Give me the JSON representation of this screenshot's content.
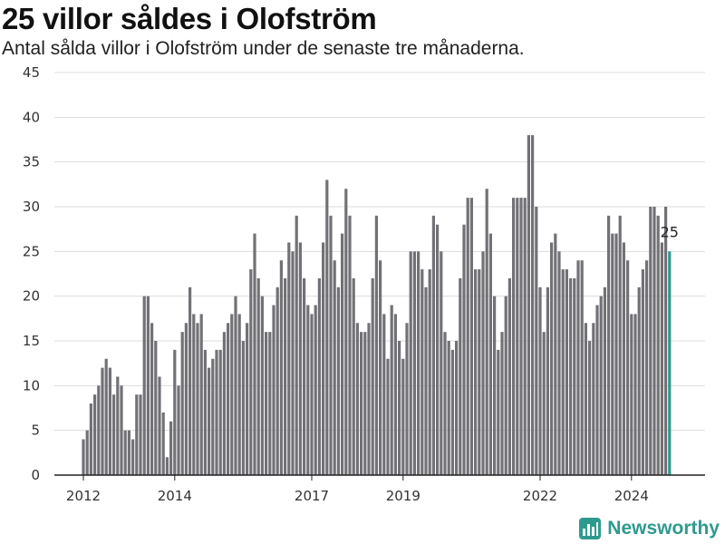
{
  "header": {
    "title": "25 villor såldes i Olofström",
    "subtitle": "Antal sålda villor i Olofström under de senaste tre månaderna."
  },
  "brand": {
    "name": "Newsworthy",
    "icon": "newsworthy-logo-icon",
    "color": "#2e9a8f"
  },
  "chart_data": {
    "type": "bar",
    "start": "2012-01",
    "interval": "month",
    "values": [
      4,
      5,
      8,
      9,
      10,
      12,
      13,
      12,
      9,
      11,
      10,
      5,
      5,
      4,
      9,
      9,
      20,
      20,
      17,
      15,
      11,
      7,
      2,
      6,
      14,
      10,
      16,
      17,
      21,
      18,
      17,
      18,
      14,
      12,
      13,
      14,
      14,
      16,
      17,
      18,
      20,
      18,
      15,
      17,
      23,
      27,
      22,
      20,
      16,
      16,
      19,
      21,
      24,
      22,
      26,
      25,
      29,
      26,
      22,
      19,
      18,
      19,
      22,
      26,
      33,
      29,
      24,
      21,
      27,
      32,
      29,
      22,
      17,
      16,
      16,
      17,
      22,
      29,
      24,
      18,
      13,
      19,
      18,
      15,
      13,
      17,
      25,
      25,
      25,
      23,
      21,
      23,
      29,
      28,
      25,
      16,
      15,
      14,
      15,
      22,
      28,
      31,
      31,
      23,
      23,
      25,
      32,
      27,
      20,
      14,
      16,
      20,
      22,
      31,
      31,
      31,
      31,
      38,
      38,
      30,
      21,
      16,
      21,
      26,
      27,
      25,
      23,
      23,
      22,
      22,
      24,
      24,
      17,
      15,
      17,
      19,
      20,
      21,
      29,
      27,
      27,
      29,
      26,
      24,
      18,
      18,
      21,
      23,
      24,
      30,
      30,
      29,
      26,
      30,
      25
    ],
    "highlight_last": true,
    "bar_color": "#727176",
    "highlight_color": "#2e9a8f",
    "x_ticks": [
      {
        "label": "2012",
        "index": 0
      },
      {
        "label": "2014",
        "index": 24
      },
      {
        "label": "2017",
        "index": 60
      },
      {
        "label": "2019",
        "index": 84
      },
      {
        "label": "2022",
        "index": 120
      },
      {
        "label": "2024",
        "index": 144
      }
    ],
    "y_ticks": [
      0,
      5,
      10,
      15,
      20,
      25,
      30,
      35,
      40,
      45
    ],
    "ylim": [
      0,
      45
    ],
    "last_label": "25",
    "grid": true
  }
}
